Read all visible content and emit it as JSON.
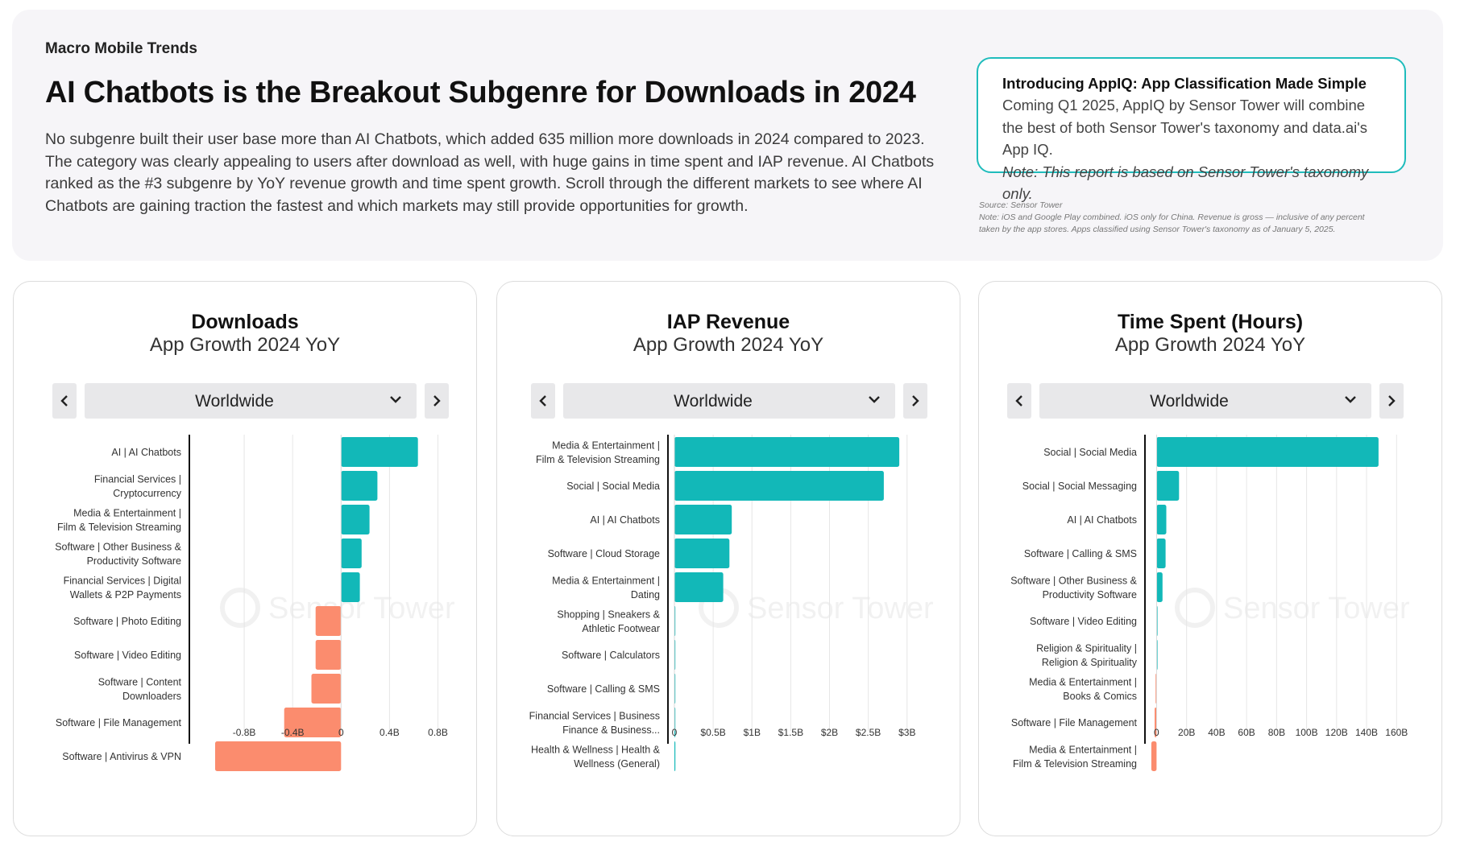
{
  "header": {
    "kicker": "Macro Mobile Trends",
    "title": "AI Chatbots is the Breakout Subgenre for Downloads in 2024",
    "description": "No subgenre built their user base more than AI Chatbots, which added 635 million more downloads in 2024 compared to 2023. The category was clearly appealing to users after download as well, with huge gains in time spent and IAP revenue. AI Chatbots ranked as the #3 subgenre by YoY revenue growth and time spent growth. Scroll through the different markets to see where AI Chatbots are gaining traction the fastest and which markets may still provide opportunities for growth."
  },
  "appiq": {
    "title": "Introducing AppIQ: App Classification Made Simple",
    "text": "Coming Q1 2025, AppIQ by Sensor Tower will combine the best of both Sensor Tower's taxonomy and data.ai's App IQ.",
    "note": "Note: This report is based on Sensor Tower's taxonomy only."
  },
  "source": {
    "line1": "Source: Sensor Tower",
    "line2": "Note: iOS and Google Play combined. iOS only for China. Revenue is gross — inclusive of any percent taken by the app stores. Apps classified using Sensor Tower's taxonomy as of January 5, 2025."
  },
  "watermark": "Sensor Tower",
  "colors": {
    "positive": "#12b8b8",
    "negative": "#fb8c6e",
    "accent": "#1fbcbc"
  },
  "icons": {
    "prev": "chevron-left-icon",
    "next": "chevron-right-icon",
    "dropdown": "chevron-down-icon"
  },
  "chart_data": [
    {
      "type": "bar",
      "orientation": "horizontal",
      "title": "Downloads",
      "subtitle": "App Growth 2024 YoY",
      "region": "Worldwide",
      "categories": [
        [
          "AI | AI Chatbots"
        ],
        [
          "Financial Services |",
          "Cryptocurrency"
        ],
        [
          "Media & Entertainment |",
          "Film & Television Streaming"
        ],
        [
          "Software | Other Business &",
          "Productivity Software"
        ],
        [
          "Financial Services | Digital",
          "Wallets & P2P Payments"
        ],
        [
          "Software | Photo Editing"
        ],
        [
          "Software | Video Editing"
        ],
        [
          "Software | Content",
          "Downloaders"
        ],
        [
          "Software | File Management"
        ],
        [
          "Software | Antivirus & VPN"
        ]
      ],
      "values": [
        0.635,
        0.3,
        0.235,
        0.17,
        0.155,
        -0.21,
        -0.21,
        -0.245,
        -0.47,
        -1.04
      ],
      "unit": "B",
      "xlim": [
        -1.2,
        0.85
      ],
      "ticks": [
        -0.8,
        -0.4,
        0,
        0.4,
        0.8
      ],
      "tick_labels": [
        "-0.8B",
        "-0.4B",
        "0",
        "0.4B",
        "0.8B"
      ],
      "grid": true
    },
    {
      "type": "bar",
      "orientation": "horizontal",
      "title": "IAP Revenue",
      "subtitle": "App Growth 2024 YoY",
      "region": "Worldwide",
      "categories": [
        [
          "Media & Entertainment |",
          "Film & Television Streaming"
        ],
        [
          "Social | Social Media"
        ],
        [
          "AI | AI Chatbots"
        ],
        [
          "Software | Cloud Storage"
        ],
        [
          "Media & Entertainment |",
          "Dating"
        ],
        [
          "Shopping | Sneakers &",
          "Athletic Footwear"
        ],
        [
          "Software | Calculators"
        ],
        [
          "Software | Calling & SMS"
        ],
        [
          "Financial Services | Business",
          "Finance & Business..."
        ],
        [
          "Health & Wellness | Health &",
          "Wellness (General)"
        ]
      ],
      "values": [
        2.9,
        2.7,
        0.74,
        0.71,
        0.63,
        0.004,
        0.004,
        0.004,
        0.003,
        0.003
      ],
      "unit": "$B",
      "xlim": [
        0,
        3.2
      ],
      "ticks": [
        0,
        0.5,
        1,
        1.5,
        2,
        2.5,
        3
      ],
      "tick_labels": [
        "0",
        "$0.5B",
        "$1B",
        "$1.5B",
        "$2B",
        "$2.5B",
        "$3B"
      ],
      "grid": true
    },
    {
      "type": "bar",
      "orientation": "horizontal",
      "title": "Time Spent (Hours)",
      "subtitle": "App Growth 2024 YoY",
      "region": "Worldwide",
      "categories": [
        [
          "Social | Social Media"
        ],
        [
          "Social | Social Messaging"
        ],
        [
          "AI | AI Chatbots"
        ],
        [
          "Software | Calling & SMS"
        ],
        [
          "Software | Other Business &",
          "Productivity Software"
        ],
        [
          "Software | Video Editing"
        ],
        [
          "Religion & Spirituality |",
          "Religion & Spirituality"
        ],
        [
          "Media & Entertainment |",
          "Books & Comics"
        ],
        [
          "Software | File Management"
        ],
        [
          "Media & Entertainment |",
          "Film & Television Streaming"
        ]
      ],
      "values": [
        148,
        15,
        6.5,
        6,
        4,
        0.4,
        0.4,
        -0.4,
        -1.3,
        -3.5
      ],
      "unit": "B",
      "xlim": [
        -4,
        162
      ],
      "ticks": [
        0,
        20,
        40,
        60,
        80,
        100,
        120,
        140,
        160
      ],
      "tick_labels": [
        "0",
        "20B",
        "40B",
        "60B",
        "80B",
        "100B",
        "120B",
        "140B",
        "160B"
      ],
      "grid": true
    }
  ]
}
